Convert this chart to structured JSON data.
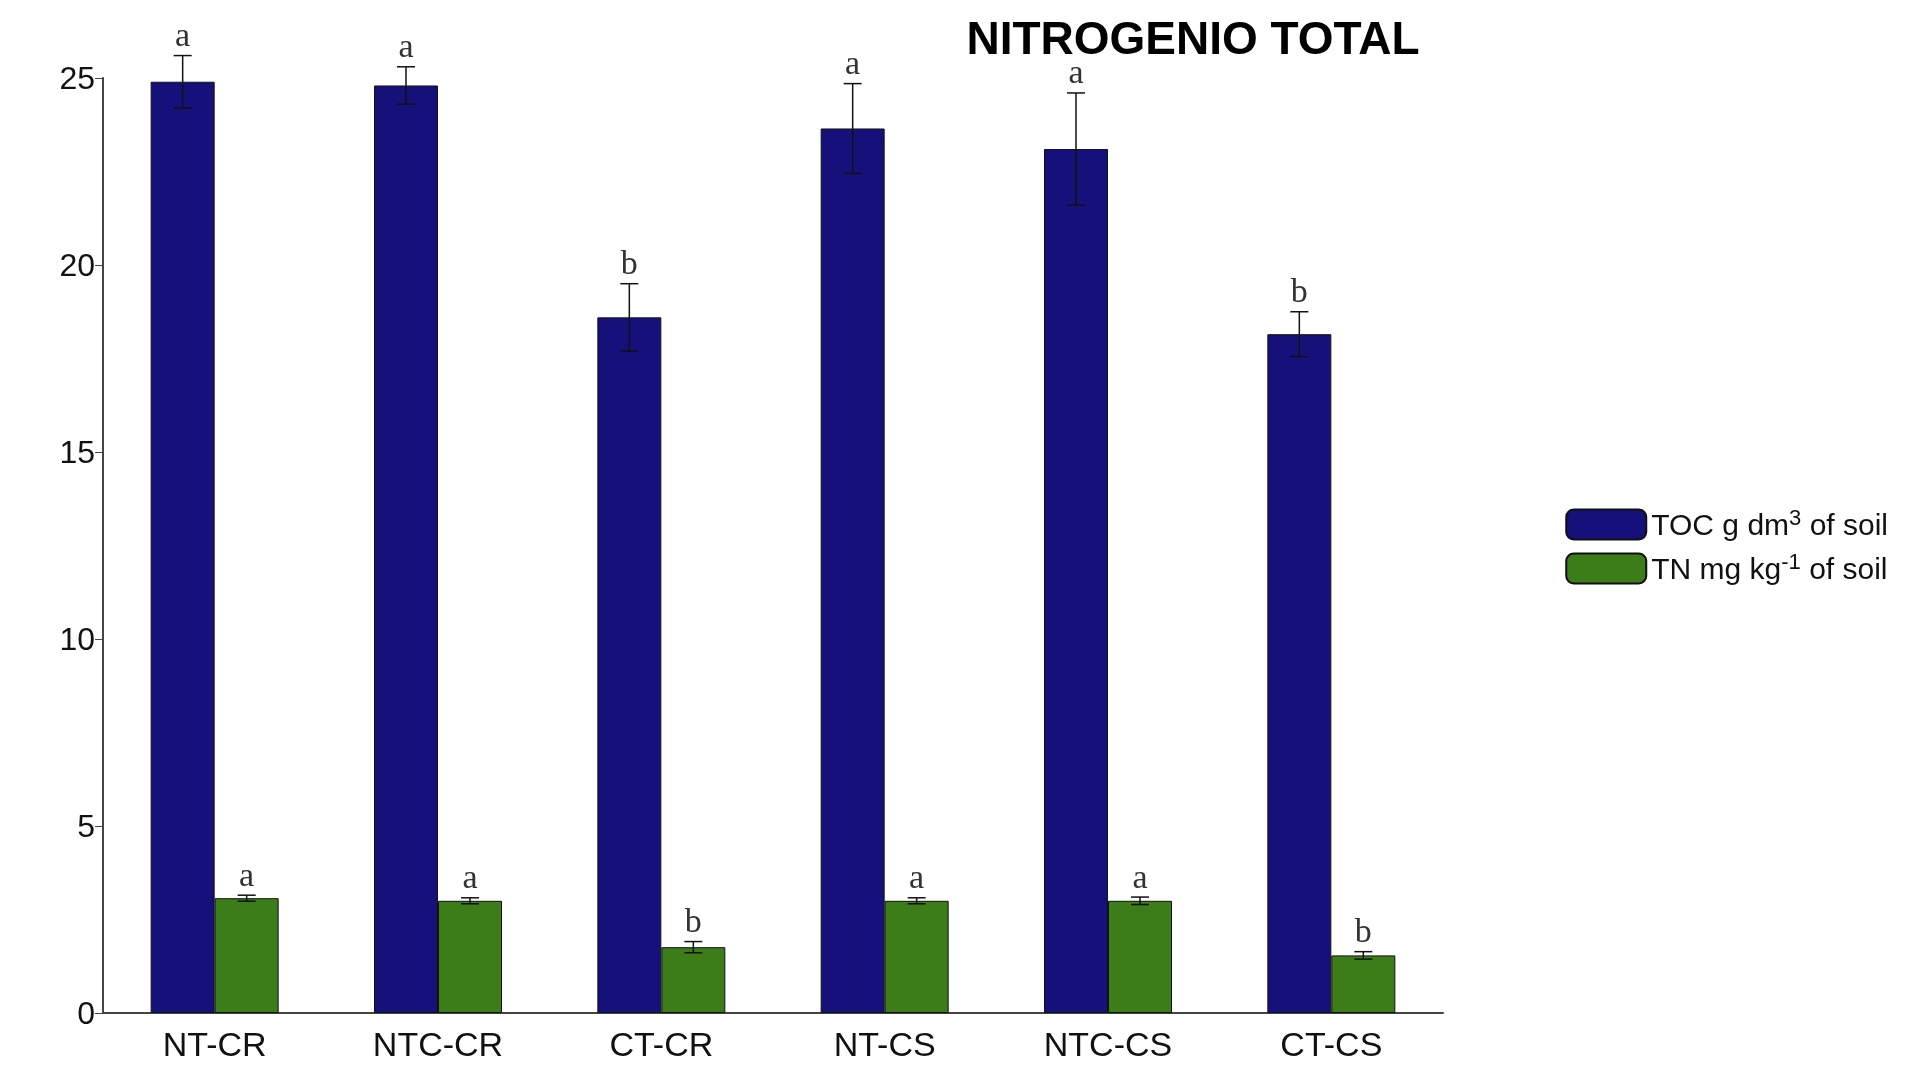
{
  "chart_data": {
    "type": "bar",
    "title": "NITROGENIO TOTAL",
    "categories": [
      "NT-CR",
      "NTC-CR",
      "CT-CR",
      "NT-CS",
      "NTC-CS",
      "CT-CS"
    ],
    "series": [
      {
        "name": "TOC g dm$^{3}$ of soil",
        "color": "#16107a",
        "values": [
          24.9,
          24.8,
          18.6,
          23.65,
          23.1,
          18.15
        ],
        "errors": [
          0.7,
          0.5,
          0.9,
          1.2,
          1.5,
          0.6
        ],
        "value_labels": [
          "a",
          "a",
          "b",
          "a",
          "a",
          "b"
        ]
      },
      {
        "name": "TN mg kg$^{-1}$ of soil",
        "color": "#3c7d1a",
        "values": [
          3.07,
          3.0,
          1.76,
          3.0,
          3.0,
          1.54
        ],
        "errors": [
          0.08,
          0.08,
          0.15,
          0.08,
          0.1,
          0.1
        ],
        "value_labels": [
          "a",
          "a",
          "b",
          "a",
          "a",
          "b"
        ]
      }
    ],
    "ylim": [
      0,
      25
    ],
    "yticks": [
      0,
      5,
      10,
      15,
      20,
      25
    ],
    "grid": false,
    "legend": "right"
  }
}
